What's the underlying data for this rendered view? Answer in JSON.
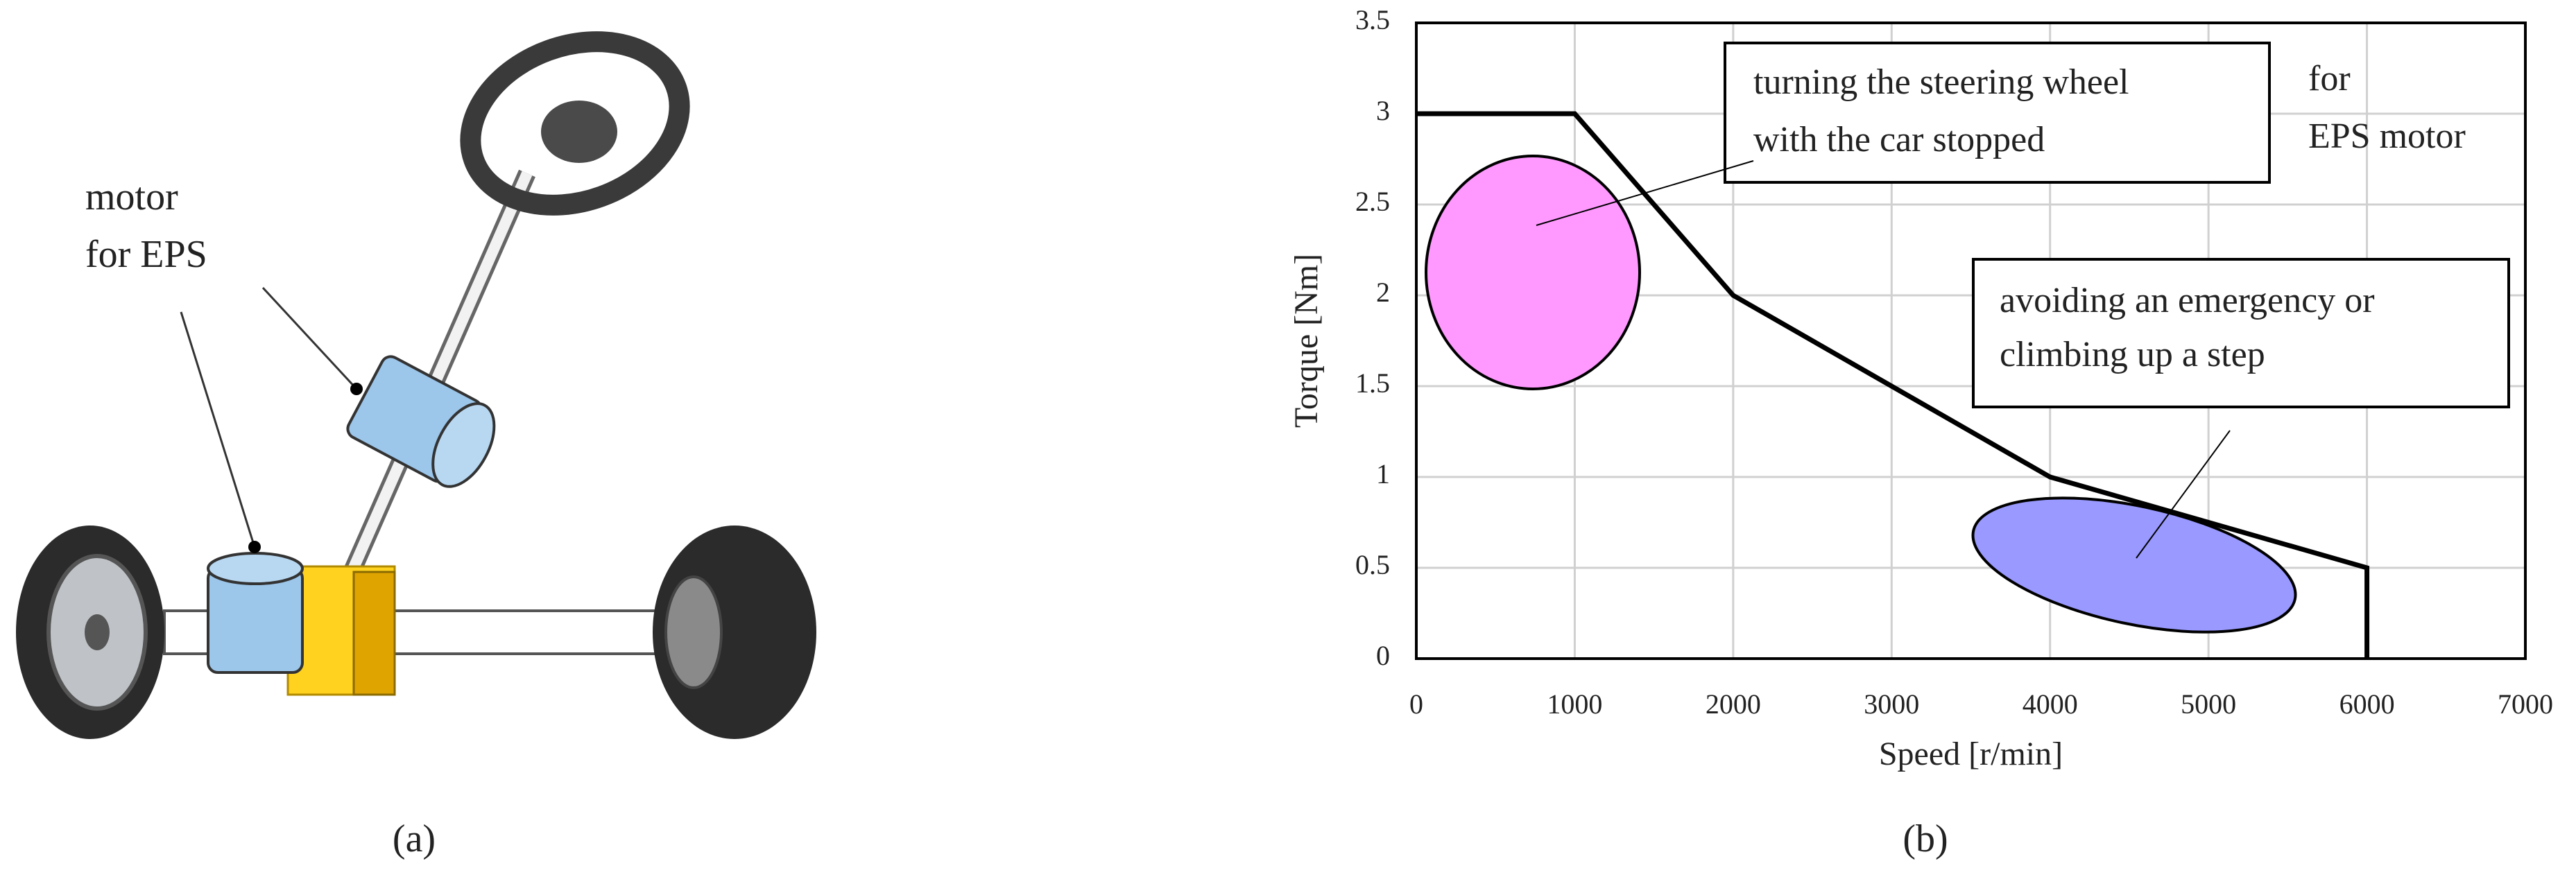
{
  "figure": {
    "panel_a": {
      "label": "(a)",
      "callout": [
        "motor",
        "for EPS"
      ]
    },
    "panel_b_label": "(b)"
  },
  "chart_data": {
    "type": "line",
    "x_label": "Speed [r/min]",
    "y_label": "Torque [Nm]",
    "x": [
      0,
      1000,
      2000,
      4000,
      6000,
      6000
    ],
    "series": [
      {
        "name": "for EPS motor",
        "color": "#000000",
        "values": [
          3,
          3,
          2,
          1,
          0.5,
          0
        ]
      }
    ],
    "xlim": [
      0,
      7000
    ],
    "xticks": [
      0,
      1000,
      2000,
      3000,
      4000,
      5000,
      6000,
      7000
    ],
    "ylim": [
      0,
      3.5
    ],
    "yticks": [
      0,
      0.5,
      1,
      1.5,
      2,
      2.5,
      3,
      3.5
    ],
    "grid": true,
    "annotations": [
      [
        "turning the steering wheel",
        "with the car stopped"
      ],
      [
        "for",
        "EPS motor"
      ],
      [
        "avoiding an emergency or",
        "climbing up a step"
      ]
    ]
  }
}
